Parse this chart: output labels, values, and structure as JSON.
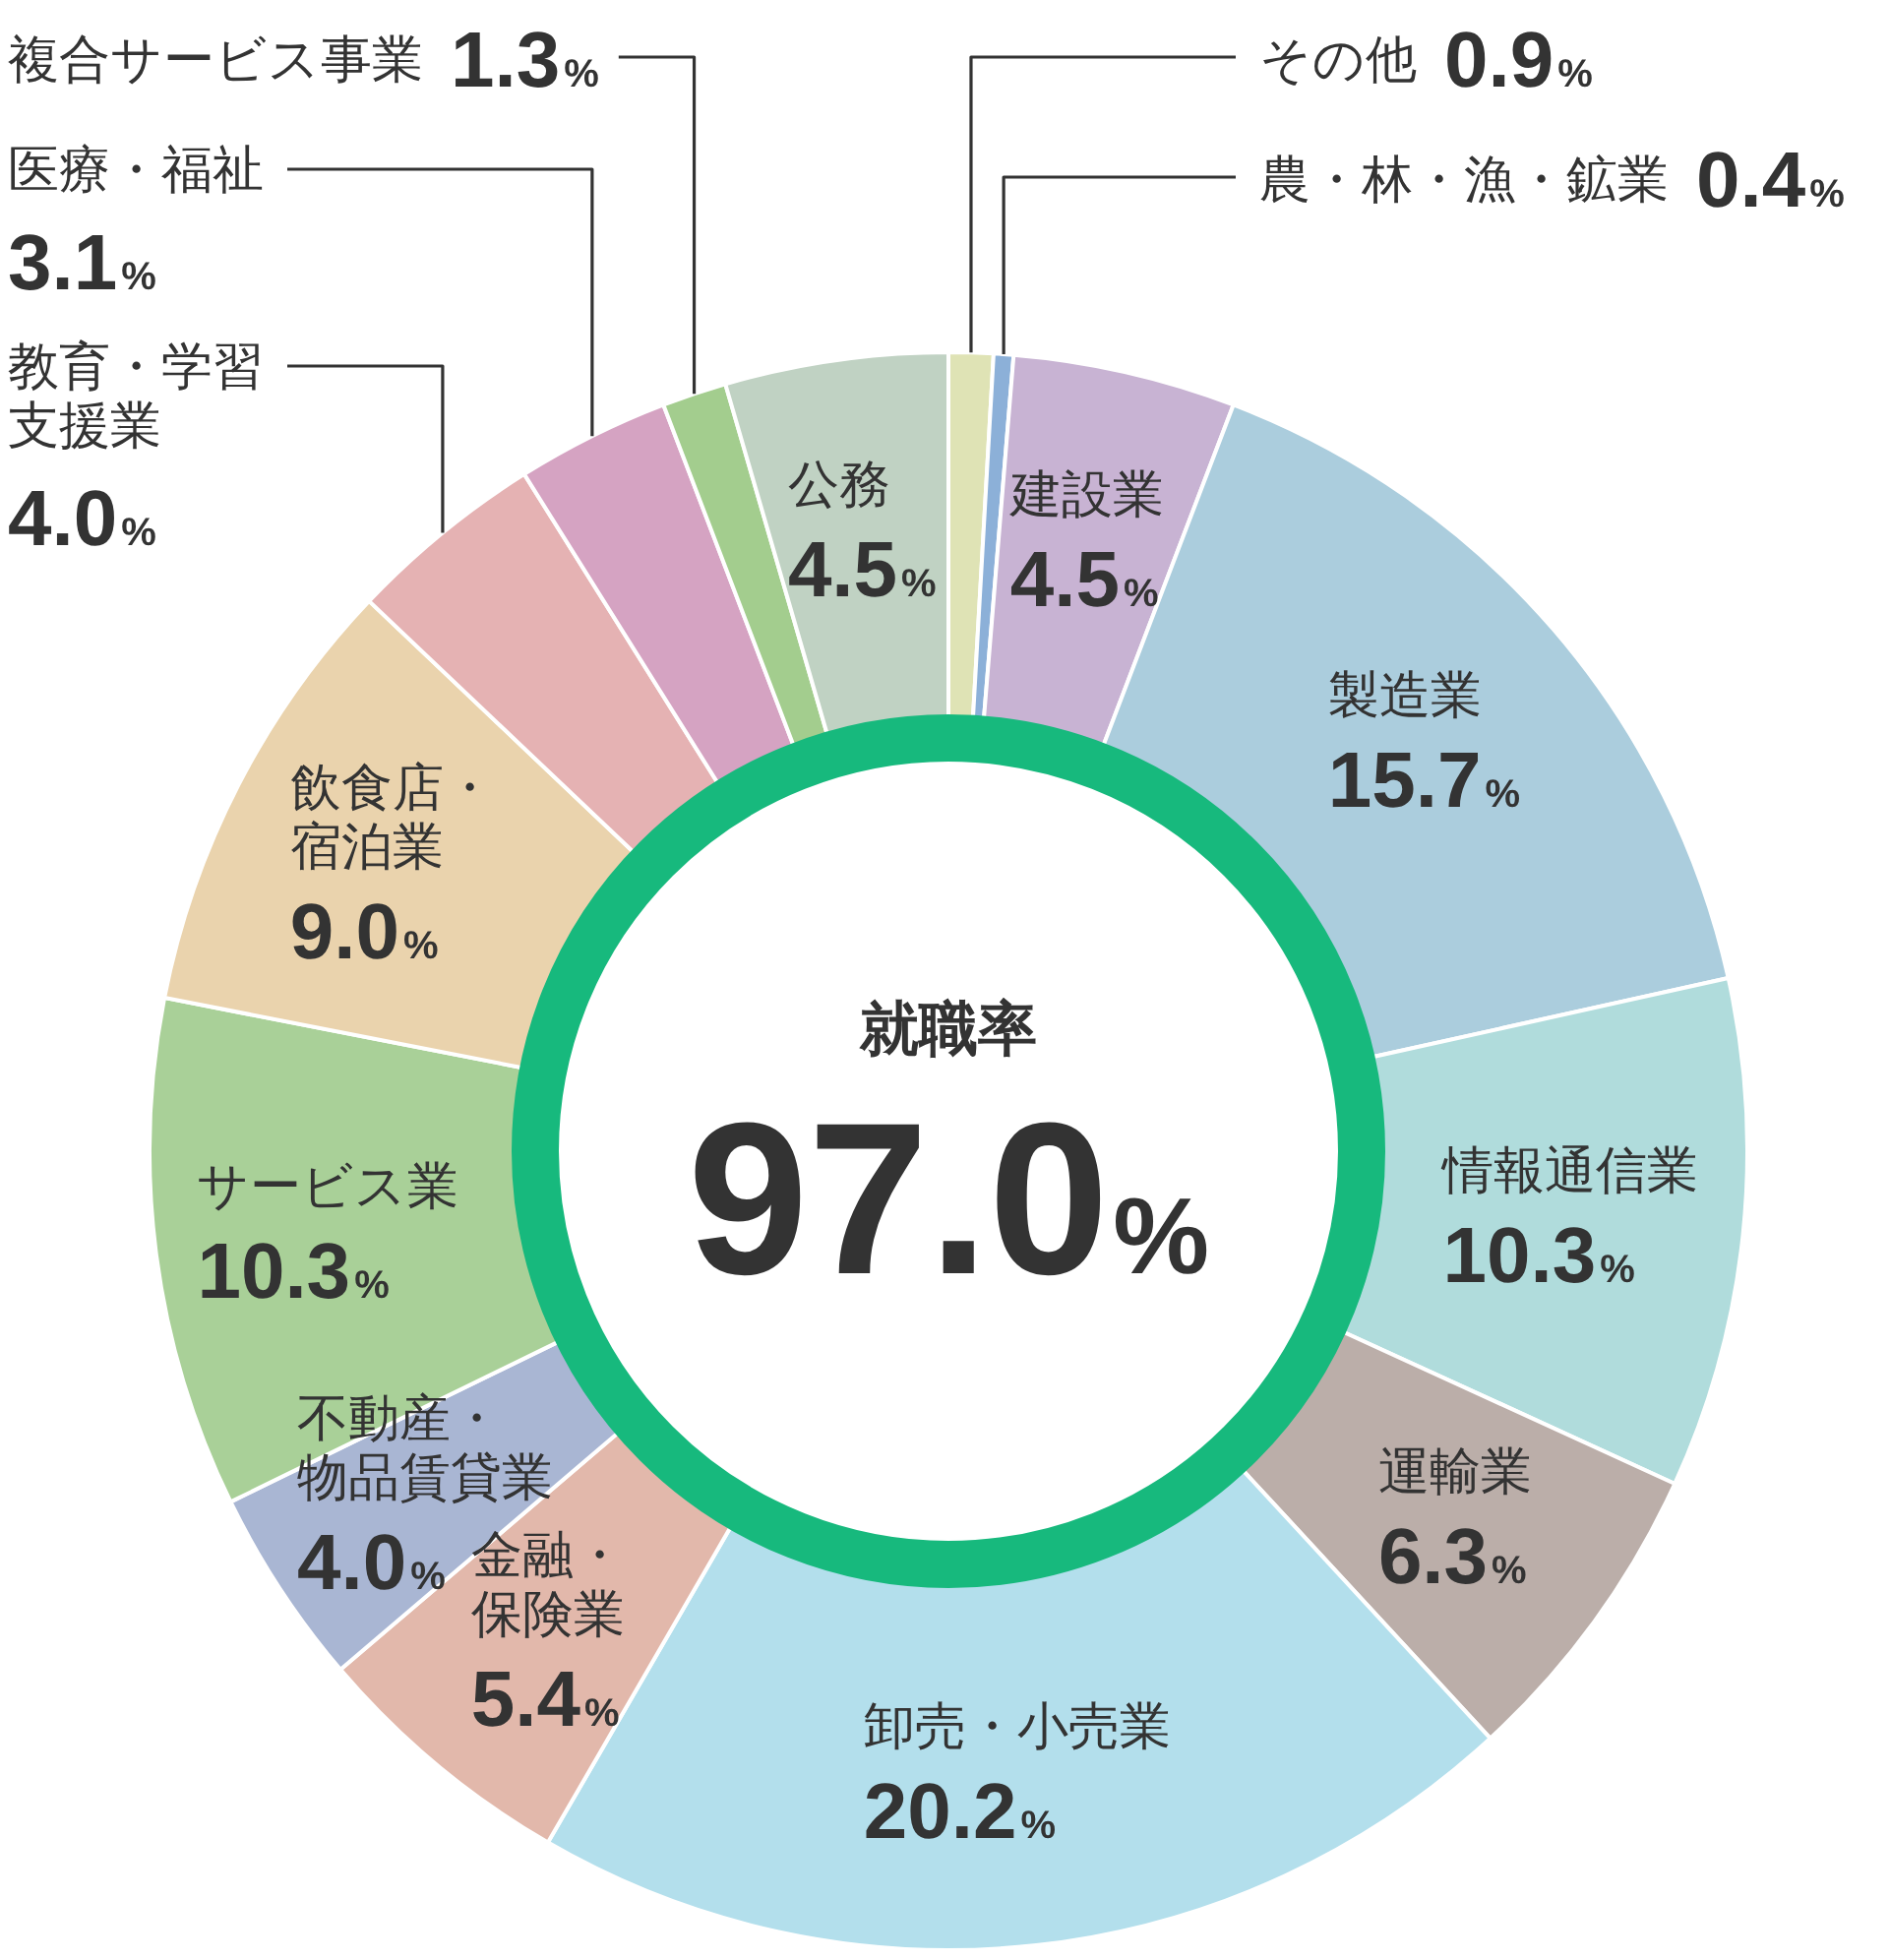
{
  "chart_data": {
    "type": "donut",
    "categories": [
      "その他",
      "農・林・漁・鉱業",
      "建設業",
      "製造業",
      "情報通信業",
      "運輸業",
      "卸売・小売業",
      "金融・保険業",
      "不動産・物品賃貸業",
      "サービス業",
      "飲食店・宿泊業",
      "教育・学習支援業",
      "医療・福祉",
      "複合サービス事業",
      "公務"
    ],
    "values": [
      0.9,
      0.4,
      4.5,
      15.7,
      10.3,
      6.3,
      20.2,
      5.4,
      4.0,
      10.3,
      9.0,
      4.0,
      3.1,
      1.3,
      4.5
    ],
    "value_labels": [
      "0.9%",
      "0.4%",
      "4.5%",
      "15.7%",
      "10.3%",
      "6.3%",
      "20.2%",
      "5.4%",
      "4.0%",
      "10.3%",
      "9.0%",
      "4.0%",
      "3.1%",
      "1.3%",
      "4.5%"
    ],
    "colors": [
      "#dfe3b5",
      "#8cb0d8",
      "#c8b3d3",
      "#abcddd",
      "#b0dcdc",
      "#bbaea9",
      "#b3dfec",
      "#e2b8ab",
      "#a9b6d3",
      "#a9d098",
      "#ead3ad",
      "#e5b2b3",
      "#d5a3c2",
      "#a3cd8e",
      "#c0d2c3"
    ],
    "annotations": [
      "就職率",
      "97.0%"
    ]
  }
}
